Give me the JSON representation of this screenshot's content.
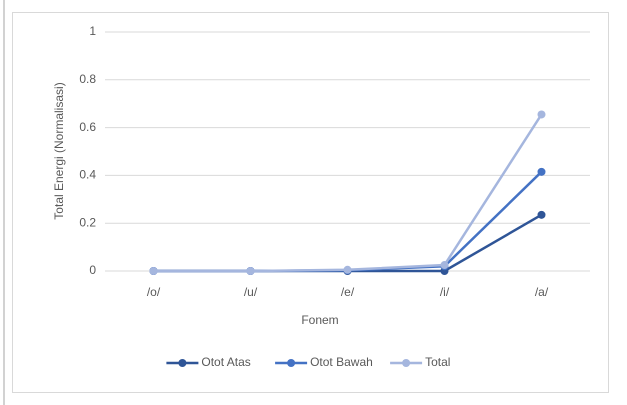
{
  "chart_data": {
    "type": "line",
    "categories": [
      "/o/",
      "/u/",
      "/e/",
      "/i/",
      "/a/"
    ],
    "series": [
      {
        "name": "Otot Atas",
        "color": "#2f5597",
        "values": [
          0,
          0,
          0,
          0,
          0.235
        ]
      },
      {
        "name": "Otot Bawah",
        "color": "#4472c4",
        "values": [
          0,
          0,
          0.003,
          0.02,
          0.415
        ]
      },
      {
        "name": "Total",
        "color": "#a5b6de",
        "values": [
          0,
          0,
          0.005,
          0.025,
          0.655
        ]
      }
    ],
    "x_label": "Fonem",
    "y_label": "Total Energi (Normalisasi)",
    "ylim": [
      0,
      1
    ],
    "yticks": [
      0,
      0.2,
      0.4,
      0.6,
      0.8,
      1
    ],
    "grid": true,
    "legend": "bottom"
  }
}
